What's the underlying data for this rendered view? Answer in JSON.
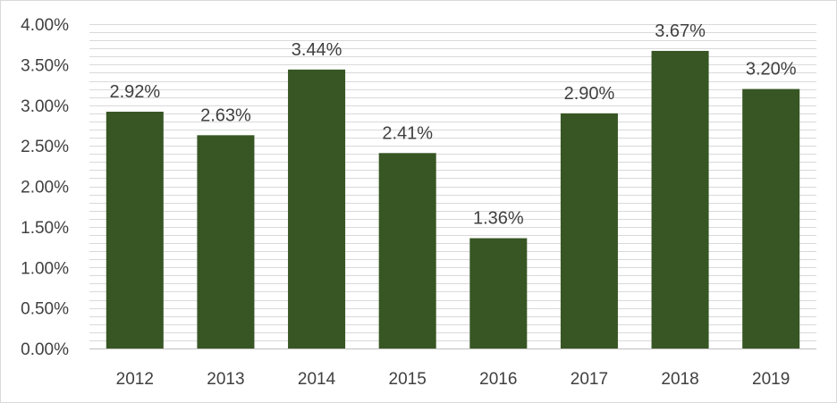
{
  "chart_data": {
    "type": "bar",
    "title": "",
    "xlabel": "",
    "ylabel": "",
    "categories": [
      "2012",
      "2013",
      "2014",
      "2015",
      "2016",
      "2017",
      "2018",
      "2019"
    ],
    "values": [
      2.92,
      2.63,
      3.44,
      2.41,
      1.36,
      2.9,
      3.67,
      3.2
    ],
    "data_labels": [
      "2.92%",
      "2.63%",
      "3.44%",
      "2.41%",
      "1.36%",
      "2.90%",
      "3.67%",
      "3.20%"
    ],
    "ylim": [
      0,
      4
    ],
    "y_ticks": [
      0,
      0.5,
      1,
      1.5,
      2,
      2.5,
      3,
      3.5,
      4
    ],
    "y_tick_labels": [
      "0.00%",
      "0.50%",
      "1.00%",
      "1.50%",
      "2.00%",
      "2.50%",
      "3.00%",
      "3.50%",
      "4.00%"
    ],
    "y_minor_step": 0.1,
    "grid": true,
    "legend": "none",
    "bar_color": "#375623",
    "grid_color": "#d9d9d9"
  }
}
